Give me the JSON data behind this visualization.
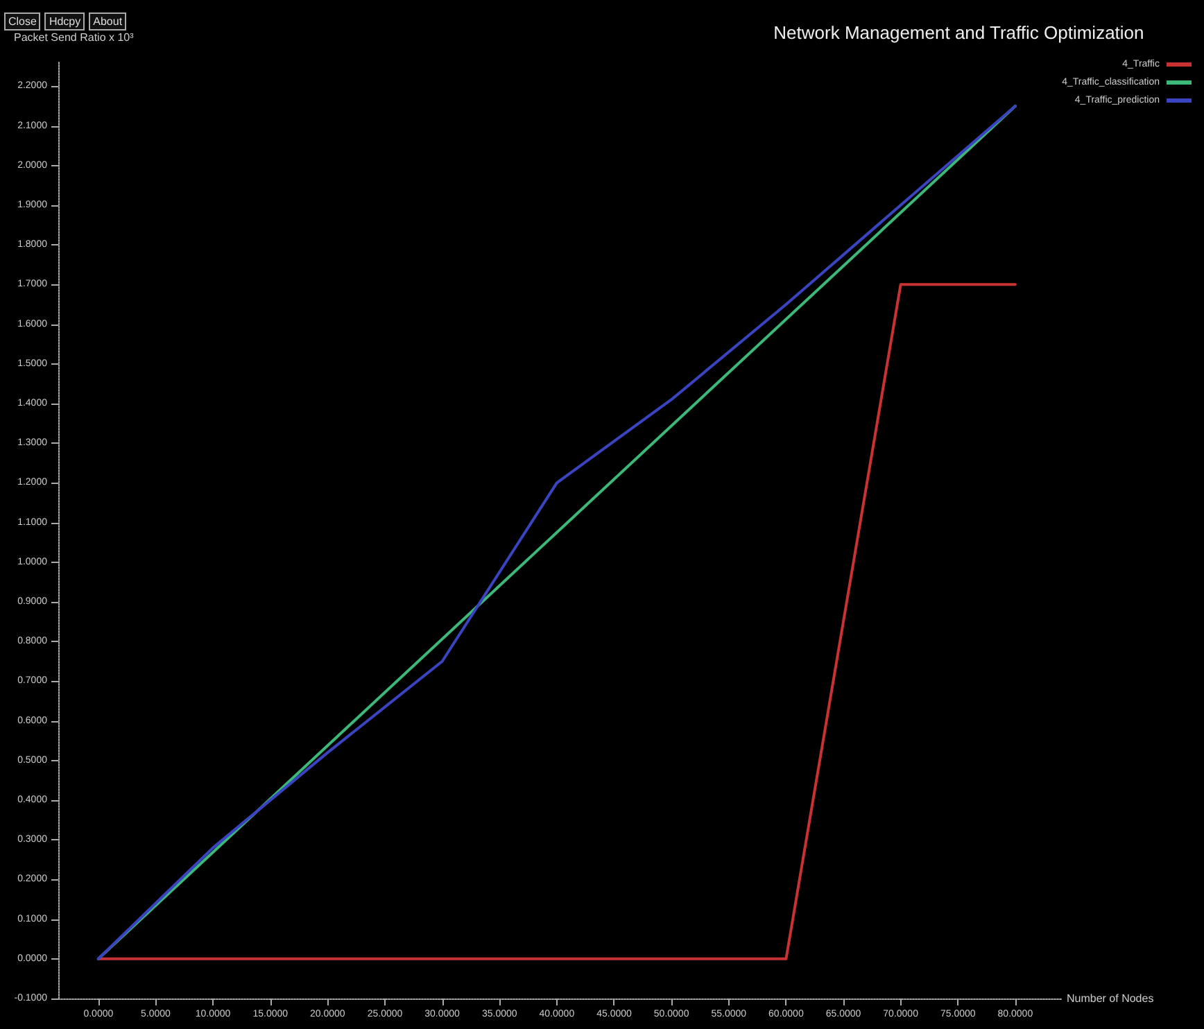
{
  "chart_data": {
    "type": "line",
    "title": "Network Management and Traffic Optimization",
    "xlabel": "Number of Nodes",
    "ylabel": "Packet Send Ratio x 10³",
    "annotations": [
      "Close",
      "Hdcpy",
      "About"
    ],
    "series": [
      {
        "name": "4_Traffic",
        "color": "#c83232",
        "x": [
          0,
          60,
          70,
          80
        ],
        "values": [
          0,
          0,
          1.7,
          1.7
        ]
      },
      {
        "name": "4_Traffic_classification",
        "color": "#3cb878",
        "x": [
          0,
          80
        ],
        "values": [
          0,
          2.15
        ]
      },
      {
        "name": "4_Traffic_prediction",
        "color": "#3a44c0",
        "x": [
          0,
          10,
          20,
          30,
          40,
          50,
          60,
          80
        ],
        "values": [
          0,
          0.28,
          0.52,
          0.75,
          1.2,
          1.41,
          1.65,
          2.15
        ]
      }
    ],
    "xlim": [
      -3.5,
      84
    ],
    "xticks": [
      {
        "value": 0,
        "label": "0.0000"
      },
      {
        "value": 5,
        "label": "5.0000"
      },
      {
        "value": 10,
        "label": "10.0000"
      },
      {
        "value": 15,
        "label": "15.0000"
      },
      {
        "value": 20,
        "label": "20.0000"
      },
      {
        "value": 25,
        "label": "25.0000"
      },
      {
        "value": 30,
        "label": "30.0000"
      },
      {
        "value": 35,
        "label": "35.0000"
      },
      {
        "value": 40,
        "label": "40.0000"
      },
      {
        "value": 45,
        "label": "45.0000"
      },
      {
        "value": 50,
        "label": "50.0000"
      },
      {
        "value": 55,
        "label": "55.0000"
      },
      {
        "value": 60,
        "label": "60.0000"
      },
      {
        "value": 65,
        "label": "65.0000"
      },
      {
        "value": 70,
        "label": "70.0000"
      },
      {
        "value": 75,
        "label": "75.0000"
      },
      {
        "value": 80,
        "label": "80.0000"
      }
    ],
    "ylim": [
      -0.1,
      2.26
    ],
    "yticks": [
      {
        "value": -0.1,
        "label": "-0.1000"
      },
      {
        "value": 0,
        "label": "0.0000"
      },
      {
        "value": 0.1,
        "label": "0.1000"
      },
      {
        "value": 0.2,
        "label": "0.2000"
      },
      {
        "value": 0.3,
        "label": "0.3000"
      },
      {
        "value": 0.4,
        "label": "0.4000"
      },
      {
        "value": 0.5,
        "label": "0.5000"
      },
      {
        "value": 0.6,
        "label": "0.6000"
      },
      {
        "value": 0.7,
        "label": "0.7000"
      },
      {
        "value": 0.8,
        "label": "0.8000"
      },
      {
        "value": 0.9,
        "label": "0.9000"
      },
      {
        "value": 1.0,
        "label": "1.0000"
      },
      {
        "value": 1.1,
        "label": "1.1000"
      },
      {
        "value": 1.2,
        "label": "1.2000"
      },
      {
        "value": 1.3,
        "label": "1.3000"
      },
      {
        "value": 1.4,
        "label": "1.4000"
      },
      {
        "value": 1.5,
        "label": "1.5000"
      },
      {
        "value": 1.6,
        "label": "1.6000"
      },
      {
        "value": 1.7,
        "label": "1.7000"
      },
      {
        "value": 1.8,
        "label": "1.8000"
      },
      {
        "value": 1.9,
        "label": "1.9000"
      },
      {
        "value": 2.0,
        "label": "2.0000"
      },
      {
        "value": 2.1,
        "label": "2.1000"
      },
      {
        "value": 2.2,
        "label": "2.2000"
      }
    ],
    "legend": "top right",
    "grid": false,
    "marker": "none",
    "line_style": "solid"
  }
}
